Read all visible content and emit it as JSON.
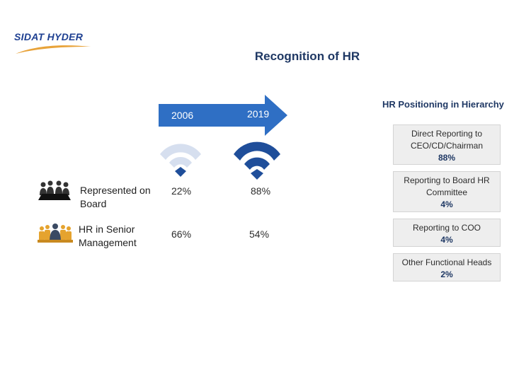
{
  "logo": {
    "text": "SIDAT HYDER",
    "icon": "sidat-hyder-logo"
  },
  "title": "Recognition of HR",
  "timeline": {
    "years": [
      "2006",
      "2019"
    ],
    "arrow_color": "#2f6fc4",
    "signal_colors": {
      "2006": "#d6dfef",
      "2019": "#1f4e9a"
    }
  },
  "rows": [
    {
      "label": "Represented on Board",
      "icon": "board-meeting-icon",
      "v2006": "22%",
      "v2019": "88%"
    },
    {
      "label": "HR in Senior Management",
      "icon": "management-team-icon",
      "v2006": "66%",
      "v2019": "54%"
    }
  ],
  "hierarchy": {
    "title": "HR Positioning in Hierarchy",
    "items": [
      {
        "label": "Direct Reporting to CEO/CD/Chairman",
        "value": "88%"
      },
      {
        "label": "Reporting to Board HR Committee",
        "value": "4%"
      },
      {
        "label": "Reporting to COO",
        "value": "4%"
      },
      {
        "label": "Other Functional Heads",
        "value": "2%"
      }
    ]
  }
}
